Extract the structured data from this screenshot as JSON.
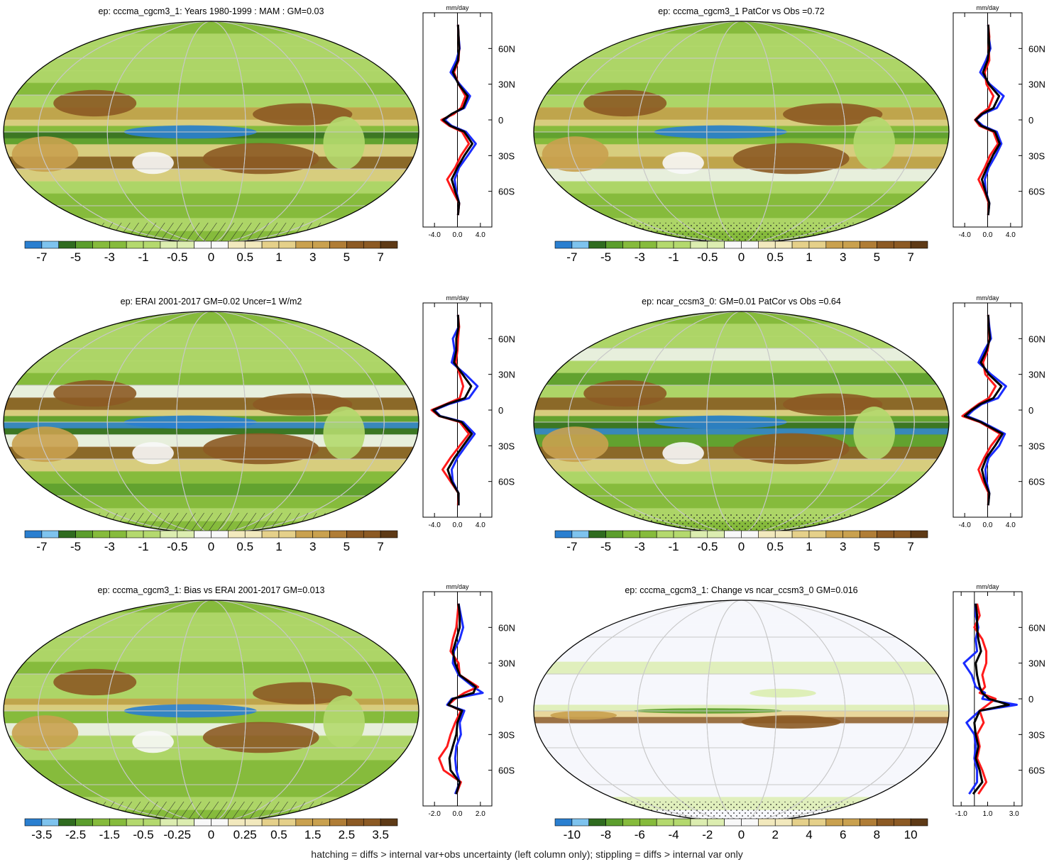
{
  "footer": "hatching = diffs > internal var+obs uncertainty (left column only); stippling = diffs > internal var only",
  "colors": {
    "blue_dark": "#2a7fd0",
    "blue_light": "#7ec3ee",
    "green_dark": "#2f6b1f",
    "green_mid": "#5c9e2d",
    "green": "#86bb3c",
    "green_light": "#b4d96e",
    "green_pale": "#dcedb0",
    "white": "#f8f8f8",
    "tan_pale": "#f2e9bd",
    "tan_light": "#e5d08a",
    "tan": "#c9a14f",
    "brown_light": "#b07d36",
    "brown": "#8c5a24",
    "brown_dark": "#5e3a16",
    "obs_line": "#1a2cff",
    "model_line": "#ff1a1a",
    "mean_line": "#000000"
  },
  "chart_data": [
    {
      "type": "heatmap",
      "title": "ep: cccma_cgcm3_1: Years 1980-1999 : MAM : GM=0.03",
      "colorbar_ticks": [
        "-7",
        "-5",
        "-3",
        "-1",
        "-0.5",
        "0",
        "0.5",
        "1",
        "3",
        "5",
        "7"
      ],
      "zonal_panel": {
        "unit": "mm/day",
        "xticks": [
          "-4.0",
          "0.0",
          "4.0"
        ],
        "xlim": [
          -6,
          6
        ],
        "yticks": [
          "60N",
          "30N",
          "0",
          "30S",
          "60S"
        ],
        "ylim": [
          -90,
          90
        ]
      },
      "zonal_mean": {
        "lat": [
          80,
          70,
          60,
          50,
          40,
          30,
          20,
          10,
          5,
          0,
          -5,
          -10,
          -20,
          -30,
          -40,
          -50,
          -60,
          -70,
          -80
        ],
        "obs": [
          0.1,
          0.2,
          0.4,
          -0.2,
          -1.2,
          0.4,
          2.2,
          1.2,
          -1.0,
          -2.2,
          -1.0,
          1.5,
          3.2,
          1.8,
          0.3,
          -0.5,
          -0.2,
          0.3,
          0.1
        ],
        "model": [
          0.1,
          0.2,
          0.3,
          0.2,
          -0.6,
          0.2,
          1.4,
          0.6,
          -0.6,
          -2.8,
          -1.4,
          0.8,
          2.0,
          0.6,
          -0.4,
          -1.8,
          -0.8,
          0.3,
          0.1
        ],
        "mean": [
          0.1,
          0.2,
          0.3,
          0.1,
          -0.8,
          0.2,
          1.8,
          1.0,
          -1.0,
          -2.5,
          -1.2,
          1.2,
          2.6,
          1.2,
          0.0,
          -1.0,
          -0.4,
          0.3,
          0.1
        ]
      },
      "overlay": "hatching"
    },
    {
      "type": "heatmap",
      "title": "ep: cccma_cgcm3_1 PatCor vs Obs =0.72",
      "colorbar_ticks": [
        "-7",
        "-5",
        "-3",
        "-1",
        "-0.5",
        "0",
        "0.5",
        "1",
        "3",
        "5",
        "7"
      ],
      "zonal_panel": {
        "unit": "mm/day",
        "xticks": [
          "-4.0",
          "0.0",
          "4.0"
        ],
        "xlim": [
          -6,
          6
        ],
        "yticks": [
          "60N",
          "30N",
          "0",
          "30S",
          "60S"
        ],
        "ylim": [
          -90,
          90
        ]
      },
      "zonal_mean": {
        "lat": [
          80,
          70,
          60,
          50,
          40,
          30,
          20,
          10,
          5,
          0,
          -5,
          -10,
          -20,
          -30,
          -40,
          -50,
          -60,
          -70,
          -80
        ],
        "obs": [
          0.1,
          0.2,
          0.5,
          -0.3,
          -1.3,
          0.4,
          2.8,
          1.6,
          -0.8,
          -2.0,
          -0.8,
          1.6,
          2.4,
          1.4,
          0.2,
          -0.5,
          -0.3,
          0.3,
          0.1
        ],
        "model": [
          0.1,
          0.3,
          0.2,
          0.3,
          -0.5,
          -0.2,
          1.0,
          0.2,
          -1.2,
          -2.2,
          -1.4,
          1.0,
          1.8,
          0.4,
          -0.5,
          -1.6,
          -0.6,
          0.2,
          0.1
        ],
        "mean": [
          0.1,
          0.2,
          0.3,
          0.0,
          -0.8,
          0.2,
          2.0,
          1.0,
          -1.0,
          -2.1,
          -1.1,
          1.3,
          2.1,
          0.9,
          -0.1,
          -1.0,
          -0.4,
          0.3,
          0.1
        ]
      },
      "overlay": "stippling"
    },
    {
      "type": "heatmap",
      "title": "ep: ERAI 2001-2017 GM=0.02 Uncer=1 W/m2",
      "colorbar_ticks": [
        "-7",
        "-5",
        "-3",
        "-1",
        "-0.5",
        "0",
        "0.5",
        "1",
        "3",
        "5",
        "7"
      ],
      "zonal_panel": {
        "unit": "mm/day",
        "xticks": [
          "-4.0",
          "0.0",
          "4.0"
        ],
        "xlim": [
          -6,
          6
        ],
        "yticks": [
          "60N",
          "30N",
          "0",
          "30S",
          "60S"
        ],
        "ylim": [
          -90,
          90
        ]
      },
      "zonal_mean": {
        "lat": [
          80,
          70,
          60,
          50,
          40,
          30,
          20,
          10,
          5,
          0,
          -5,
          -10,
          -20,
          -30,
          -40,
          -50,
          -60,
          -70,
          -80
        ],
        "obs": [
          0.1,
          0.2,
          -0.8,
          -0.5,
          -1.0,
          1.4,
          3.5,
          2.0,
          -1.5,
          -4.0,
          -3.0,
          1.0,
          3.0,
          1.5,
          0.0,
          -1.0,
          -0.8,
          0.2,
          0.2
        ],
        "model": [
          0.1,
          0.3,
          0.1,
          0.0,
          -0.3,
          0.4,
          1.0,
          0.4,
          -2.0,
          -4.5,
          -3.2,
          0.4,
          2.0,
          0.4,
          -1.2,
          -2.6,
          -1.2,
          0.2,
          0.1
        ],
        "mean": [
          0.1,
          0.2,
          -0.2,
          -0.2,
          -0.6,
          0.9,
          2.4,
          1.3,
          -1.8,
          -4.2,
          -3.1,
          0.7,
          2.5,
          1.0,
          -0.5,
          -1.7,
          -1.0,
          0.2,
          0.2
        ]
      },
      "overlay": "hatching"
    },
    {
      "type": "heatmap",
      "title": "ep: ncar_ccsm3_0: GM=0.01 PatCor vs Obs =0.64",
      "colorbar_ticks": [
        "-7",
        "-5",
        "-3",
        "-1",
        "-0.5",
        "0",
        "0.5",
        "1",
        "3",
        "5",
        "7"
      ],
      "zonal_panel": {
        "unit": "mm/day",
        "xticks": [
          "-4.0",
          "0.0",
          "4.0"
        ],
        "xlim": [
          -6,
          6
        ],
        "yticks": [
          "60N",
          "30N",
          "0",
          "30S",
          "60S"
        ],
        "ylim": [
          -90,
          90
        ]
      },
      "zonal_mean": {
        "lat": [
          80,
          70,
          60,
          50,
          40,
          30,
          20,
          10,
          5,
          0,
          -5,
          -10,
          -20,
          -30,
          -40,
          -50,
          -60,
          -70,
          -80
        ],
        "obs": [
          0.1,
          0.3,
          0.6,
          -0.6,
          -1.6,
          0.6,
          3.2,
          1.8,
          -1.0,
          -2.5,
          -3.6,
          -1.0,
          3.0,
          2.0,
          0.2,
          -0.4,
          -0.2,
          0.3,
          0.1
        ],
        "model": [
          0.1,
          0.2,
          0.3,
          0.0,
          -0.8,
          -0.4,
          1.4,
          0.2,
          -1.6,
          -3.0,
          -4.4,
          -1.4,
          2.2,
          0.6,
          -0.6,
          -1.6,
          -0.8,
          0.2,
          0.1
        ],
        "mean": [
          0.1,
          0.2,
          0.4,
          -0.2,
          -1.2,
          0.2,
          2.4,
          1.0,
          -1.3,
          -2.8,
          -4.0,
          -1.2,
          2.6,
          1.3,
          -0.2,
          -1.0,
          -0.5,
          0.3,
          0.1
        ]
      },
      "overlay": "stippling"
    },
    {
      "type": "heatmap",
      "title": "ep: cccma_cgcm3_1: Bias vs ERAI 2001-2017 GM=0.013",
      "colorbar_ticks": [
        "-3.5",
        "-2.5",
        "-1.5",
        "-0.5",
        "-0.25",
        "0",
        "0.25",
        "0.5",
        "1.5",
        "2.5",
        "3.5"
      ],
      "zonal_panel": {
        "unit": "mm/day",
        "xticks": [
          "-2.0",
          "0.0",
          "2.0"
        ],
        "xlim": [
          -3,
          3
        ],
        "yticks": [
          "60N",
          "30N",
          "0",
          "30S",
          "60S"
        ],
        "ylim": [
          -90,
          90
        ]
      },
      "zonal_mean": {
        "lat": [
          80,
          70,
          60,
          50,
          40,
          30,
          20,
          10,
          5,
          0,
          -5,
          -10,
          -20,
          -30,
          -40,
          -50,
          -60,
          -70,
          -80
        ],
        "obs": [
          0.1,
          0.3,
          0.5,
          0.2,
          -0.3,
          -0.4,
          0.1,
          1.4,
          2.2,
          -0.5,
          -0.9,
          0.6,
          0.2,
          0.3,
          -0.1,
          -0.2,
          -0.1,
          0.2,
          -0.2
        ],
        "model": [
          0.1,
          0.0,
          -0.1,
          -0.4,
          -0.6,
          0.1,
          0.2,
          1.8,
          0.6,
          -0.2,
          -0.8,
          0.3,
          -0.2,
          -0.6,
          -0.9,
          -1.6,
          -1.2,
          0.3,
          -0.1
        ],
        "mean": [
          0.1,
          0.2,
          0.2,
          -0.1,
          -0.4,
          -0.2,
          0.2,
          1.6,
          1.4,
          -0.4,
          -0.8,
          0.4,
          0.0,
          -0.1,
          -0.4,
          -0.7,
          -0.6,
          0.2,
          -0.1
        ]
      },
      "overlay": "hatching"
    },
    {
      "type": "heatmap",
      "title": "ep: cccma_cgcm3_1: Change vs ncar_ccsm3_0 GM=0.016",
      "colorbar_ticks": [
        "-10",
        "-8",
        "-6",
        "-4",
        "-2",
        "0",
        "2",
        "4",
        "6",
        "8",
        "10"
      ],
      "zonal_panel": {
        "unit": "mm/day",
        "xticks": [
          "-1.0",
          "1.0",
          "3.0"
        ],
        "xlim": [
          -1.6,
          3.6
        ],
        "yticks": [
          "60N",
          "30N",
          "0",
          "30S",
          "60S"
        ],
        "ylim": [
          -90,
          90
        ]
      },
      "zonal_mean": {
        "lat": [
          80,
          70,
          60,
          50,
          40,
          30,
          20,
          10,
          5,
          0,
          -5,
          -10,
          -20,
          -30,
          -40,
          -50,
          -60,
          -70,
          -80
        ],
        "obs": [
          0.1,
          0.1,
          0.3,
          0.1,
          0.2,
          -0.8,
          -0.2,
          0.1,
          0.8,
          0.6,
          3.2,
          0.4,
          -0.6,
          0.0,
          0.1,
          0.0,
          0.2,
          0.2,
          -0.4
        ],
        "model": [
          0.2,
          0.4,
          0.0,
          0.6,
          0.9,
          0.9,
          0.6,
          0.8,
          0.4,
          1.6,
          1.0,
          0.4,
          0.7,
          0.2,
          0.4,
          0.2,
          0.6,
          0.9,
          0.3
        ],
        "mean": [
          0.1,
          0.2,
          0.2,
          0.3,
          0.5,
          0.1,
          0.2,
          0.4,
          0.6,
          1.1,
          2.6,
          0.4,
          0.0,
          0.1,
          0.3,
          0.1,
          0.4,
          0.6,
          -0.1
        ]
      },
      "overlay": "stippling"
    }
  ]
}
